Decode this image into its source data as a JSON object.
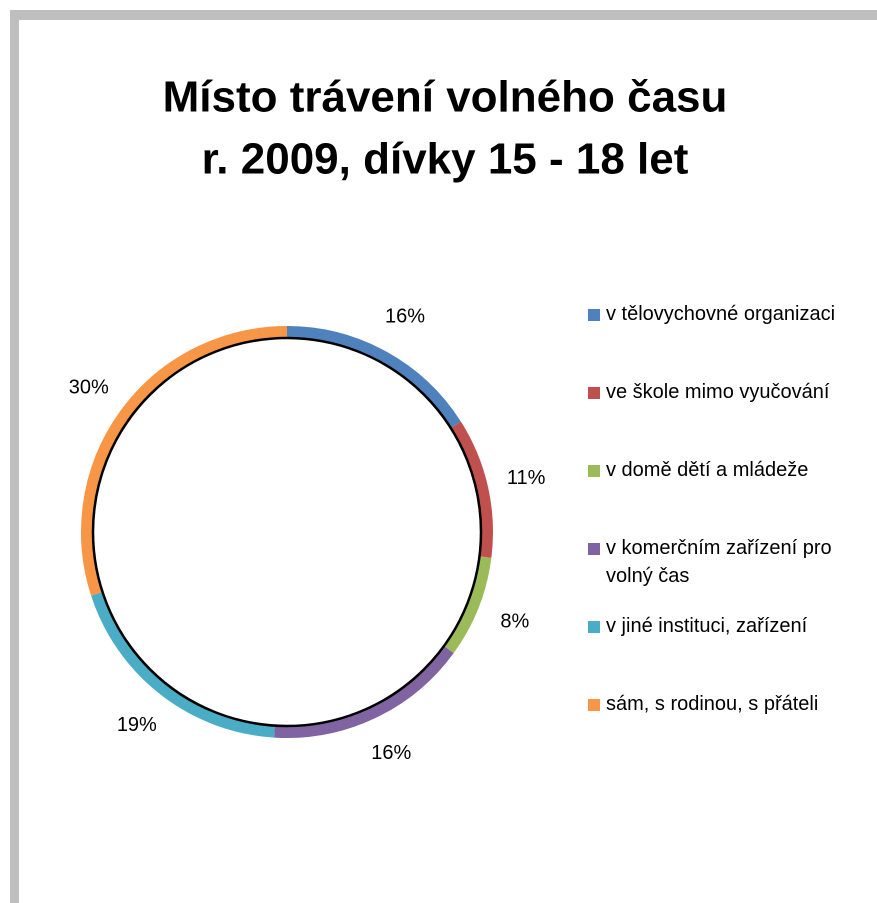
{
  "chart_data": {
    "type": "doughnut",
    "title": [
      "Místo trávení volného času",
      "r. 2009, dívky 15 - 18 let"
    ],
    "categories": [
      "v tělovychovné organizaci",
      "ve škole mimo vyučování",
      "v domě dětí a mládeže",
      "v komerčním zařízení pro volný čas",
      "v jiné instituci, zařízení",
      "sám, s rodinou, s přáteli"
    ],
    "values": [
      16,
      11,
      8,
      16,
      19,
      30
    ],
    "value_labels": [
      "16%",
      "11%",
      "8%",
      "16%",
      "19%",
      "30%"
    ],
    "colors": [
      "#4F81BD",
      "#C0504D",
      "#9BBB59",
      "#8064A2",
      "#4BACC6",
      "#F79646"
    ],
    "legend": "right"
  }
}
